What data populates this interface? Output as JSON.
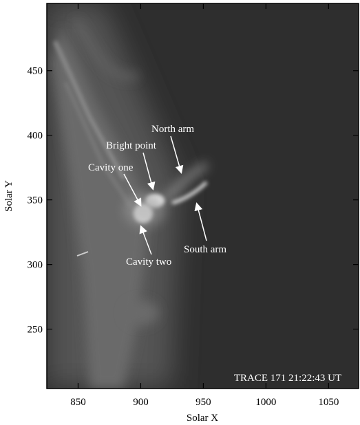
{
  "chart_data": {
    "type": "image",
    "x_label": "Solar X",
    "y_label": "Solar Y",
    "xlim": [
      825,
      1074
    ],
    "ylim": [
      204,
      502
    ],
    "xticks": [
      850,
      900,
      950,
      1000,
      1050
    ],
    "yticks": [
      250,
      300,
      350,
      400,
      450
    ],
    "annotations": [
      "North arm",
      "Bright point",
      "Cavity one",
      "Cavity two",
      "South arm"
    ],
    "caption": "TRACE 171 21:22:43 UT"
  }
}
